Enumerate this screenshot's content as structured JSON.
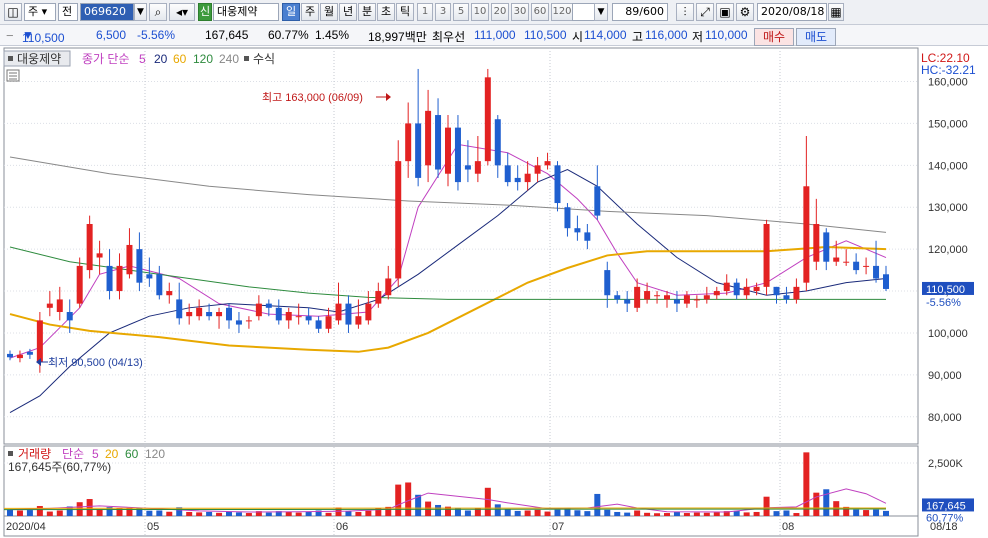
{
  "toolbar": {
    "chart_type": "주",
    "market": "전",
    "code": "069620",
    "tag": "신",
    "name": "대웅제약",
    "periods": [
      "일",
      "주",
      "월",
      "년",
      "분",
      "초",
      "틱"
    ],
    "active_period": "일",
    "intervals": [
      "1",
      "3",
      "5",
      "10",
      "20",
      "30",
      "60",
      "120"
    ],
    "count": "89/600",
    "date": "2020/08/18"
  },
  "quote": {
    "price": "110,500",
    "change": "6,500",
    "change_pct": "-5.56%",
    "volume": "167,645",
    "volume_ratio": "60.77%",
    "turnover": "1.45%",
    "amount": "18,997백만",
    "best_label": "최우선",
    "best_ask": "111,000",
    "best_bid": "110,500",
    "open_label": "시",
    "open": "114,000",
    "high_label": "고",
    "high": "116,000",
    "low_label": "저",
    "low": "110,000",
    "buy": "매수",
    "sell": "매도"
  },
  "price_legend": {
    "name": "대웅제약",
    "ma_label": "종가 단순",
    "ma_periods": [
      "5",
      "20",
      "60",
      "120",
      "240"
    ],
    "ma_colors": [
      "#c040c0",
      "#1a2a7a",
      "#e8a800",
      "#2e8b3e",
      "#888888"
    ],
    "formula": "수식"
  },
  "lc_hc": {
    "lc": "LC:22.10",
    "hc": "HC:-32.21"
  },
  "volume_legend": {
    "label": "거래량",
    "ma_label": "단순",
    "ma_periods": [
      "5",
      "20",
      "60",
      "120"
    ],
    "value": "167,645주(60,77%)"
  },
  "chart_data": {
    "type": "candlestick",
    "x_ticks": [
      "2020/04",
      "05",
      "06",
      "07",
      "08",
      "08/18"
    ],
    "y_ticks": [
      "80,000",
      "90,000",
      "100,000",
      "110,000",
      "120,000",
      "130,000",
      "140,000",
      "150,000",
      "160,000"
    ],
    "ylim": [
      73500,
      168000
    ],
    "vol_ticks": [
      "2,500K"
    ],
    "vol_max": 3300,
    "annotations": {
      "max_label": "최고 163,000 (06/09)",
      "min_label": "최저 90,500 (04/13)",
      "last_price": "110,500",
      "last_change": "-5.56%",
      "last_volume": "167,645",
      "last_volume_ratio": "60,77%"
    },
    "candles": [
      [
        95000,
        94200,
        95800,
        93500,
        310
      ],
      [
        94000,
        94800,
        95800,
        93000,
        260
      ],
      [
        95500,
        94800,
        96200,
        93800,
        280
      ],
      [
        93000,
        103000,
        105000,
        90500,
        470
      ],
      [
        106000,
        107000,
        110000,
        104000,
        210
      ],
      [
        105000,
        108000,
        111000,
        103000,
        260
      ],
      [
        105000,
        103000,
        108000,
        100000,
        450
      ],
      [
        107000,
        116000,
        118000,
        106000,
        650
      ],
      [
        115000,
        126000,
        128000,
        113000,
        800
      ],
      [
        118000,
        119000,
        122000,
        114000,
        330
      ],
      [
        116000,
        110000,
        120000,
        108000,
        420
      ],
      [
        110000,
        116000,
        119000,
        108000,
        370
      ],
      [
        114000,
        121000,
        125000,
        113000,
        380
      ],
      [
        120000,
        112000,
        124000,
        110000,
        360
      ],
      [
        114000,
        113000,
        118000,
        111000,
        250
      ],
      [
        114000,
        109000,
        116000,
        108000,
        260
      ],
      [
        109000,
        110000,
        112000,
        107000,
        200
      ],
      [
        108000,
        103500,
        112000,
        102000,
        410
      ],
      [
        104000,
        105000,
        107000,
        102000,
        190
      ],
      [
        104000,
        106000,
        108000,
        103000,
        170
      ],
      [
        105000,
        104000,
        107000,
        103000,
        190
      ],
      [
        104000,
        105000,
        106000,
        101000,
        150
      ],
      [
        106000,
        103000,
        107000,
        101000,
        200
      ],
      [
        103000,
        102000,
        105000,
        100000,
        170
      ],
      [
        103000,
        103000,
        104000,
        101000,
        140
      ],
      [
        104000,
        107000,
        109000,
        103000,
        230
      ],
      [
        107000,
        106000,
        108000,
        104000,
        160
      ],
      [
        106000,
        103000,
        108000,
        102000,
        230
      ],
      [
        103000,
        105000,
        106000,
        101000,
        190
      ],
      [
        104000,
        104000,
        107000,
        102000,
        160
      ],
      [
        104000,
        103000,
        106000,
        102000,
        200
      ],
      [
        103000,
        101000,
        104000,
        100000,
        260
      ],
      [
        101000,
        104000,
        106000,
        100000,
        150
      ],
      [
        103000,
        107000,
        112000,
        102000,
        400
      ],
      [
        107000,
        102000,
        109000,
        100000,
        240
      ],
      [
        102000,
        104000,
        108000,
        101000,
        190
      ],
      [
        103000,
        107000,
        110000,
        102000,
        250
      ],
      [
        107000,
        110000,
        112000,
        106000,
        370
      ],
      [
        109000,
        113000,
        116000,
        108000,
        430
      ],
      [
        113000,
        141000,
        146000,
        111000,
        1480
      ],
      [
        141000,
        150000,
        155000,
        137000,
        1580
      ],
      [
        150000,
        137000,
        163000,
        135000,
        1000
      ],
      [
        140000,
        153000,
        158000,
        136000,
        680
      ],
      [
        152000,
        139000,
        156000,
        137000,
        520
      ],
      [
        138000,
        149000,
        152000,
        135000,
        440
      ],
      [
        149000,
        136000,
        152000,
        134000,
        380
      ],
      [
        140000,
        139000,
        146000,
        136000,
        260
      ],
      [
        138000,
        141000,
        147000,
        136000,
        360
      ],
      [
        141000,
        161000,
        163000,
        140000,
        1330
      ],
      [
        151000,
        140000,
        152000,
        137000,
        550
      ],
      [
        140000,
        136000,
        143000,
        135000,
        320
      ],
      [
        137000,
        136000,
        140000,
        134000,
        240
      ],
      [
        136000,
        138000,
        141000,
        134000,
        260
      ],
      [
        138000,
        140000,
        142000,
        136000,
        290
      ],
      [
        140000,
        141000,
        143000,
        139000,
        210
      ],
      [
        140000,
        131000,
        141000,
        129000,
        300
      ],
      [
        130000,
        125000,
        131000,
        123000,
        380
      ],
      [
        125000,
        124000,
        128000,
        122000,
        270
      ],
      [
        124000,
        122000,
        126000,
        120000,
        230
      ],
      [
        135000,
        128000,
        140000,
        127000,
        1040
      ],
      [
        115000,
        109000,
        117000,
        106000,
        290
      ],
      [
        109000,
        108000,
        110000,
        107000,
        190
      ],
      [
        108000,
        107000,
        110000,
        105000,
        160
      ],
      [
        106000,
        111000,
        113000,
        105000,
        260
      ],
      [
        108000,
        110000,
        112000,
        107000,
        150
      ],
      [
        109000,
        109000,
        110000,
        107000,
        130
      ],
      [
        108000,
        109000,
        110000,
        106000,
        140
      ],
      [
        108000,
        107000,
        110000,
        105000,
        200
      ],
      [
        107000,
        109000,
        110000,
        106000,
        140
      ],
      [
        108000,
        108000,
        109000,
        106000,
        160
      ],
      [
        108000,
        109000,
        111000,
        107000,
        150
      ],
      [
        109000,
        110000,
        111000,
        108000,
        170
      ],
      [
        110000,
        112000,
        114000,
        109000,
        230
      ],
      [
        112000,
        109000,
        113000,
        108000,
        240
      ],
      [
        109000,
        111000,
        113000,
        108000,
        170
      ],
      [
        110000,
        111000,
        112000,
        109000,
        190
      ],
      [
        111000,
        126000,
        127000,
        109000,
        910
      ],
      [
        111000,
        109000,
        111000,
        107000,
        230
      ],
      [
        109000,
        108000,
        111000,
        107000,
        260
      ],
      [
        108000,
        111000,
        113000,
        107000,
        140
      ],
      [
        112000,
        135000,
        147000,
        110000,
        3000
      ],
      [
        117000,
        126000,
        132000,
        115000,
        1100
      ],
      [
        124000,
        117000,
        125000,
        115000,
        1260
      ],
      [
        117000,
        118000,
        122000,
        116000,
        700
      ],
      [
        117000,
        117000,
        120000,
        116000,
        430
      ],
      [
        117000,
        115000,
        119000,
        114000,
        300
      ],
      [
        116000,
        116000,
        118000,
        114000,
        280
      ],
      [
        116000,
        113000,
        122000,
        112000,
        300
      ],
      [
        114000,
        110500,
        116000,
        110000,
        240
      ]
    ],
    "ma_series": {
      "5": [
        [
          0,
          94000
        ],
        [
          3,
          96500
        ],
        [
          7,
          106000
        ],
        [
          9,
          114000
        ],
        [
          12,
          116000
        ],
        [
          17,
          113000
        ],
        [
          21,
          107000
        ],
        [
          26,
          104500
        ],
        [
          31,
          104000
        ],
        [
          36,
          105000
        ],
        [
          39,
          113000
        ],
        [
          41,
          130000
        ],
        [
          45,
          145000
        ],
        [
          50,
          143000
        ],
        [
          54,
          138000
        ],
        [
          57,
          132000
        ],
        [
          59,
          127000
        ],
        [
          61,
          119000
        ],
        [
          63,
          112000
        ],
        [
          67,
          109000
        ],
        [
          72,
          109500
        ],
        [
          76,
          112000
        ],
        [
          80,
          118000
        ],
        [
          84,
          122000
        ],
        [
          88,
          118000
        ]
      ],
      "20": [
        [
          0,
          81000
        ],
        [
          3,
          85000
        ],
        [
          6,
          92000
        ],
        [
          10,
          100000
        ],
        [
          14,
          104000
        ],
        [
          18,
          106000
        ],
        [
          22,
          107000
        ],
        [
          26,
          106500
        ],
        [
          30,
          106000
        ],
        [
          33,
          105000
        ],
        [
          37,
          108000
        ],
        [
          41,
          114000
        ],
        [
          45,
          121000
        ],
        [
          49,
          128000
        ],
        [
          53,
          136000
        ],
        [
          56,
          139000
        ],
        [
          59,
          135000
        ],
        [
          63,
          126000
        ],
        [
          67,
          118000
        ],
        [
          71,
          112000
        ],
        [
          76,
          109000
        ],
        [
          80,
          110000
        ],
        [
          84,
          112000
        ],
        [
          88,
          113000
        ]
      ],
      "60": [
        [
          0,
          104500
        ],
        [
          4,
          102000
        ],
        [
          8,
          100500
        ],
        [
          15,
          99000
        ],
        [
          22,
          97000
        ],
        [
          30,
          96000
        ],
        [
          35,
          95500
        ],
        [
          38,
          96500
        ],
        [
          42,
          100000
        ],
        [
          47,
          106000
        ],
        [
          52,
          112000
        ],
        [
          56,
          115500
        ],
        [
          60,
          118500
        ],
        [
          64,
          119500
        ],
        [
          70,
          119500
        ],
        [
          76,
          119500
        ],
        [
          82,
          120500
        ],
        [
          88,
          120000
        ]
      ],
      "120": [
        [
          0,
          120500
        ],
        [
          6,
          117000
        ],
        [
          12,
          115000
        ],
        [
          18,
          113000
        ],
        [
          24,
          111000
        ],
        [
          30,
          109500
        ],
        [
          36,
          108500
        ],
        [
          44,
          108000
        ],
        [
          52,
          108000
        ],
        [
          60,
          108000
        ],
        [
          68,
          108000
        ],
        [
          76,
          108000
        ],
        [
          82,
          108000
        ],
        [
          88,
          108000
        ]
      ],
      "240": [
        [
          0,
          142000
        ],
        [
          10,
          138000
        ],
        [
          20,
          135000
        ],
        [
          30,
          133000
        ],
        [
          40,
          131500
        ],
        [
          50,
          130500
        ],
        [
          60,
          129000
        ],
        [
          70,
          128000
        ],
        [
          80,
          126000
        ],
        [
          88,
          124000
        ]
      ]
    },
    "vol_ma5": [
      [
        0,
        300
      ],
      [
        4,
        360
      ],
      [
        9,
        480
      ],
      [
        14,
        360
      ],
      [
        19,
        240
      ],
      [
        24,
        190
      ],
      [
        29,
        200
      ],
      [
        34,
        230
      ],
      [
        38,
        320
      ],
      [
        40,
        720
      ],
      [
        42,
        1080
      ],
      [
        44,
        980
      ],
      [
        48,
        780
      ],
      [
        50,
        620
      ],
      [
        54,
        340
      ],
      [
        58,
        380
      ],
      [
        61,
        560
      ],
      [
        63,
        380
      ],
      [
        66,
        200
      ],
      [
        72,
        190
      ],
      [
        76,
        390
      ],
      [
        79,
        430
      ],
      [
        81,
        900
      ],
      [
        84,
        1280
      ],
      [
        86,
        1050
      ],
      [
        88,
        600
      ]
    ]
  }
}
